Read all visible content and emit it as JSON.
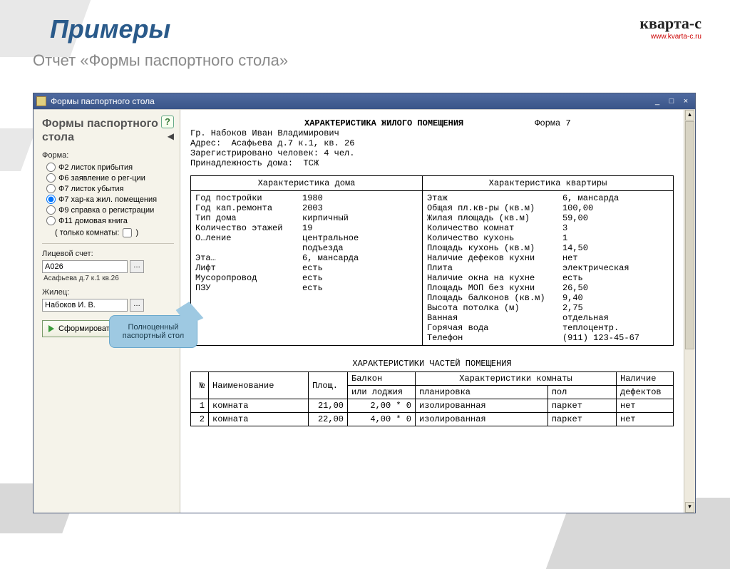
{
  "page": {
    "title": "Примеры",
    "subtitle": "Отчет «Формы паспортного стола»"
  },
  "logo": {
    "text": "кварта-с",
    "url": "www.kvarta-c.ru"
  },
  "window": {
    "title": "Формы паспортного стола",
    "min": "_",
    "max": "□",
    "close": "×"
  },
  "sidebar": {
    "heading": "Формы паспортного стола",
    "help": "?",
    "collapse": "◀",
    "form_label": "Форма:",
    "forms": [
      {
        "label": "Ф2  листок прибытия",
        "selected": false
      },
      {
        "label": "Ф6  заявление о рег-ции",
        "selected": false
      },
      {
        "label": "Ф7  листок убытия",
        "selected": false
      },
      {
        "label": "Ф7  хар-ка жил. помещения",
        "selected": true
      },
      {
        "label": "Ф9  справка о регистрации",
        "selected": false
      },
      {
        "label": "Ф11 домовая книга",
        "selected": false
      }
    ],
    "rooms_only": "( только комнаты:",
    "rooms_only_end": ")",
    "account_label": "Лицевой счет:",
    "account_value": "А026",
    "account_sub": "Асафьева д.7 к.1 кв.26",
    "resident_label": "Жилец:",
    "resident_value": "Набоков И. В.",
    "generate": "Сформировать"
  },
  "callout": "Полноценный паспортный стол",
  "doc": {
    "title": "ХАРАКТЕРИСТИКА ЖИЛОГО ПОМЕЩЕНИЯ",
    "form_no": "Форма 7",
    "lines": [
      "Гр. Набоков Иван Владимирович",
      "Адрес:  Асафьева д.7 к.1, кв. 26",
      "Зарегистрировано человек: 4 чел.",
      "Принадлежность дома:  ТСЖ"
    ],
    "col1_header": "Характеристика дома",
    "col2_header": "Характеристика квартиры",
    "col1": [
      {
        "k": "Год постройки",
        "v": "1980"
      },
      {
        "k": "Год кап.ремонта",
        "v": "2003"
      },
      {
        "k": "Тип дома",
        "v": "кирпичный"
      },
      {
        "k": "Количество этажей",
        "v": "19"
      },
      {
        "k": "О…ление",
        "v": "центральное"
      },
      {
        "k": "",
        "v": ""
      },
      {
        "k": "",
        "v": "подъезда"
      },
      {
        "k": "",
        "v": ""
      },
      {
        "k": "Эта…",
        "v": "6, мансарда"
      },
      {
        "k": "Лифт",
        "v": "есть"
      },
      {
        "k": "Мусоропровод",
        "v": "есть"
      },
      {
        "k": "ПЗУ",
        "v": "есть"
      }
    ],
    "col2": [
      {
        "k": "Этаж",
        "v": "6, мансарда"
      },
      {
        "k": "Общая пл.кв-ры (кв.м)",
        "v": "100,00"
      },
      {
        "k": "Жилая площадь (кв.м)",
        "v": "59,00"
      },
      {
        "k": "Количество комнат",
        "v": "3"
      },
      {
        "k": "Количество кухонь",
        "v": "1"
      },
      {
        "k": "Площадь кухонь (кв.м)",
        "v": "14,50"
      },
      {
        "k": "Наличие дефеков кухни",
        "v": "нет"
      },
      {
        "k": "Плита",
        "v": "электрическая"
      },
      {
        "k": "Наличие окна на кухне",
        "v": "есть"
      },
      {
        "k": "Площадь МОП без кухни",
        "v": "26,50"
      },
      {
        "k": "Площадь балконов (кв.м)",
        "v": "9,40"
      },
      {
        "k": "Высота потолка (м)",
        "v": "2,75"
      },
      {
        "k": "Ванная",
        "v": "отдельная"
      },
      {
        "k": "Горячая вода",
        "v": "теплоцентр."
      },
      {
        "k": "Телефон",
        "v": "(911) 123-45-67"
      }
    ],
    "parts_title": "ХАРАКТЕРИСТИКИ ЧАСТЕЙ ПОМЕЩЕНИЯ",
    "parts_headers": {
      "n": "№",
      "name": "Наименование",
      "area": "Площ.",
      "balcony1": "Балкон",
      "balcony2": "или лоджия",
      "char": "Характеристики комнаты",
      "plan": "планировка",
      "floor": "пол",
      "def": "Наличие",
      "def2": "дефектов"
    },
    "parts_rows": [
      {
        "n": "1",
        "name": "комната",
        "area": "21,00",
        "bal": "2,00 * 0",
        "plan": "изолированная",
        "floor": "паркет",
        "def": "нет"
      },
      {
        "n": "2",
        "name": "комната",
        "area": "22,00",
        "bal": "4,00 * 0",
        "plan": "изолированная",
        "floor": "паркет",
        "def": "нет"
      }
    ]
  }
}
